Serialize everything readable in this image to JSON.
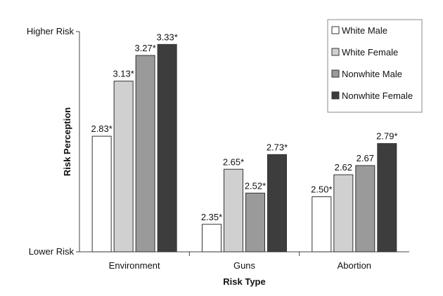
{
  "chart_data": {
    "type": "bar",
    "categories": [
      "Environment",
      "Guns",
      "Abortion"
    ],
    "series": [
      {
        "name": "White Male",
        "values": [
          2.83,
          2.35,
          2.5
        ],
        "labels": [
          "2.83*",
          "2.35*",
          "2.50*"
        ],
        "color": "#ffffff"
      },
      {
        "name": "White Female",
        "values": [
          3.13,
          2.65,
          2.62
        ],
        "labels": [
          "3.13*",
          "2.65*",
          "2.62"
        ],
        "color": "#d0d0d0"
      },
      {
        "name": "Nonwhite Male",
        "values": [
          3.27,
          2.52,
          2.67
        ],
        "labels": [
          "3.27*",
          "2.52*",
          "2.67"
        ],
        "color": "#9a9a9a"
      },
      {
        "name": "Nonwhite Female",
        "values": [
          3.33,
          2.73,
          2.79
        ],
        "labels": [
          "3.33*",
          "2.73*",
          "2.79*"
        ],
        "color": "#3d3d3d"
      }
    ],
    "xlabel": "Risk Type",
    "ylabel": "Risk Perception",
    "ylim": [
      2.2,
      3.4
    ],
    "y_tick_labels": [
      {
        "value": 3.4,
        "label": "Higher Risk"
      },
      {
        "value": 2.2,
        "label": "Lower Risk"
      }
    ],
    "grid": false,
    "legend_position": "top-right"
  }
}
